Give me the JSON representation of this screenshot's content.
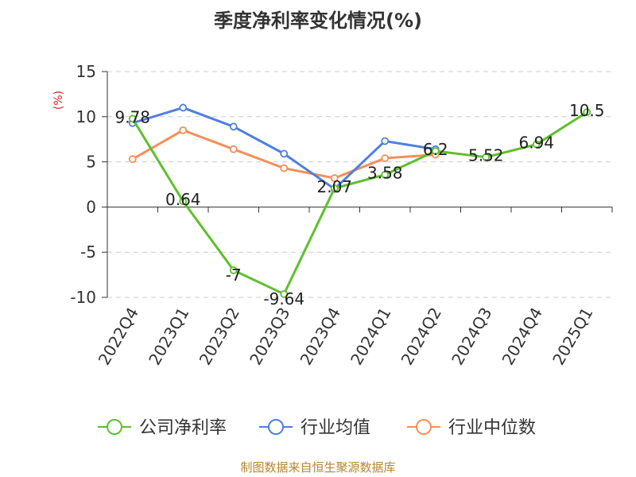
{
  "chart_data": {
    "type": "line",
    "title": "季度净利率变化情况(%)",
    "ylabel": "(%)",
    "categories": [
      "2022Q4",
      "2023Q1",
      "2023Q2",
      "2023Q3",
      "2023Q4",
      "2024Q1",
      "2024Q2",
      "2024Q3",
      "2024Q4",
      "2025Q1"
    ],
    "ylim": [
      -10,
      15
    ],
    "yticks": [
      -10,
      -5,
      0,
      5,
      10,
      15
    ],
    "grid": true,
    "legend_position": "bottom",
    "series": [
      {
        "name": "公司净利率",
        "color": "#5ec02c",
        "values": [
          9.78,
          0.64,
          -7,
          -9.64,
          2.07,
          3.58,
          6.2,
          5.52,
          6.94,
          10.5
        ],
        "labels": [
          "9.78",
          "0.64",
          "-7",
          "-9.64",
          "2.07",
          "3.58",
          "6.2",
          "5.52",
          "6.94",
          "10.5"
        ]
      },
      {
        "name": "行业均值",
        "color": "#4f7fe0",
        "values": [
          9.3,
          11.0,
          8.9,
          5.9,
          2.0,
          7.3,
          6.4,
          null,
          null,
          null
        ]
      },
      {
        "name": "行业中位数",
        "color": "#f3905a",
        "values": [
          5.3,
          8.5,
          6.4,
          4.3,
          3.2,
          5.4,
          5.8,
          null,
          null,
          null
        ]
      }
    ]
  },
  "footer": {
    "source": "制图数据来自恒生聚源数据库"
  }
}
